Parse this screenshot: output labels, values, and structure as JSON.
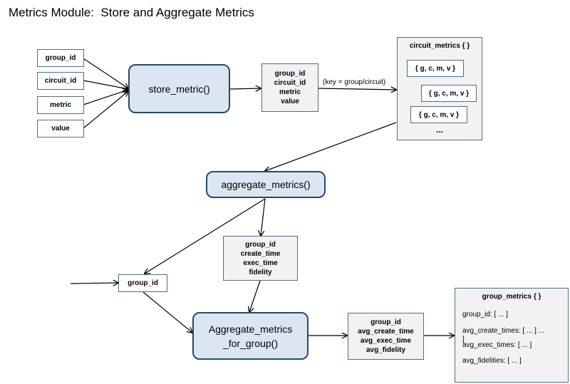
{
  "title": "Metrics Module:  Store and Aggregate Metrics",
  "inputs": [
    "group_id",
    "circuit_id",
    "metric",
    "value"
  ],
  "store_metric": {
    "label": "store_metric()"
  },
  "stored_fields": [
    "group_id",
    "circuit_id",
    "metric",
    "value"
  ],
  "key_label": "(key = group/circuit)",
  "circuit_metrics": {
    "title": "circuit_metrics { }",
    "entries": [
      "{ g, c, m, v }",
      "{ g, c, m, v }",
      "{ g, c, m, v }"
    ],
    "ellipsis": "..."
  },
  "aggregate_metrics": {
    "label": "aggregate_metrics()"
  },
  "aggregate_fields": [
    "group_id",
    "create_time",
    "exec_time",
    "fidelity"
  ],
  "group_id_input": "group_id",
  "aggregate_for_group": {
    "line1": "Aggregate_metrics",
    "line2": "_for_group()"
  },
  "output_fields": [
    "group_id",
    "avg_create_time",
    "avg_exec_time",
    "avg_fidelity"
  ],
  "group_metrics": {
    "title": "group_metrics { }",
    "lines": [
      "group_id: [ ... ]",
      "avg_create_times: [ ...  ] ...",
      "]",
      "avg_exec_times: [ ... ]",
      "avg_fidelities: [ ... ]"
    ]
  },
  "colors": {
    "box_border": "#4a6f8c",
    "fn_fill": "#dce6f2",
    "fn_border": "#26496b",
    "panel_fill": "#f2f2f2"
  }
}
